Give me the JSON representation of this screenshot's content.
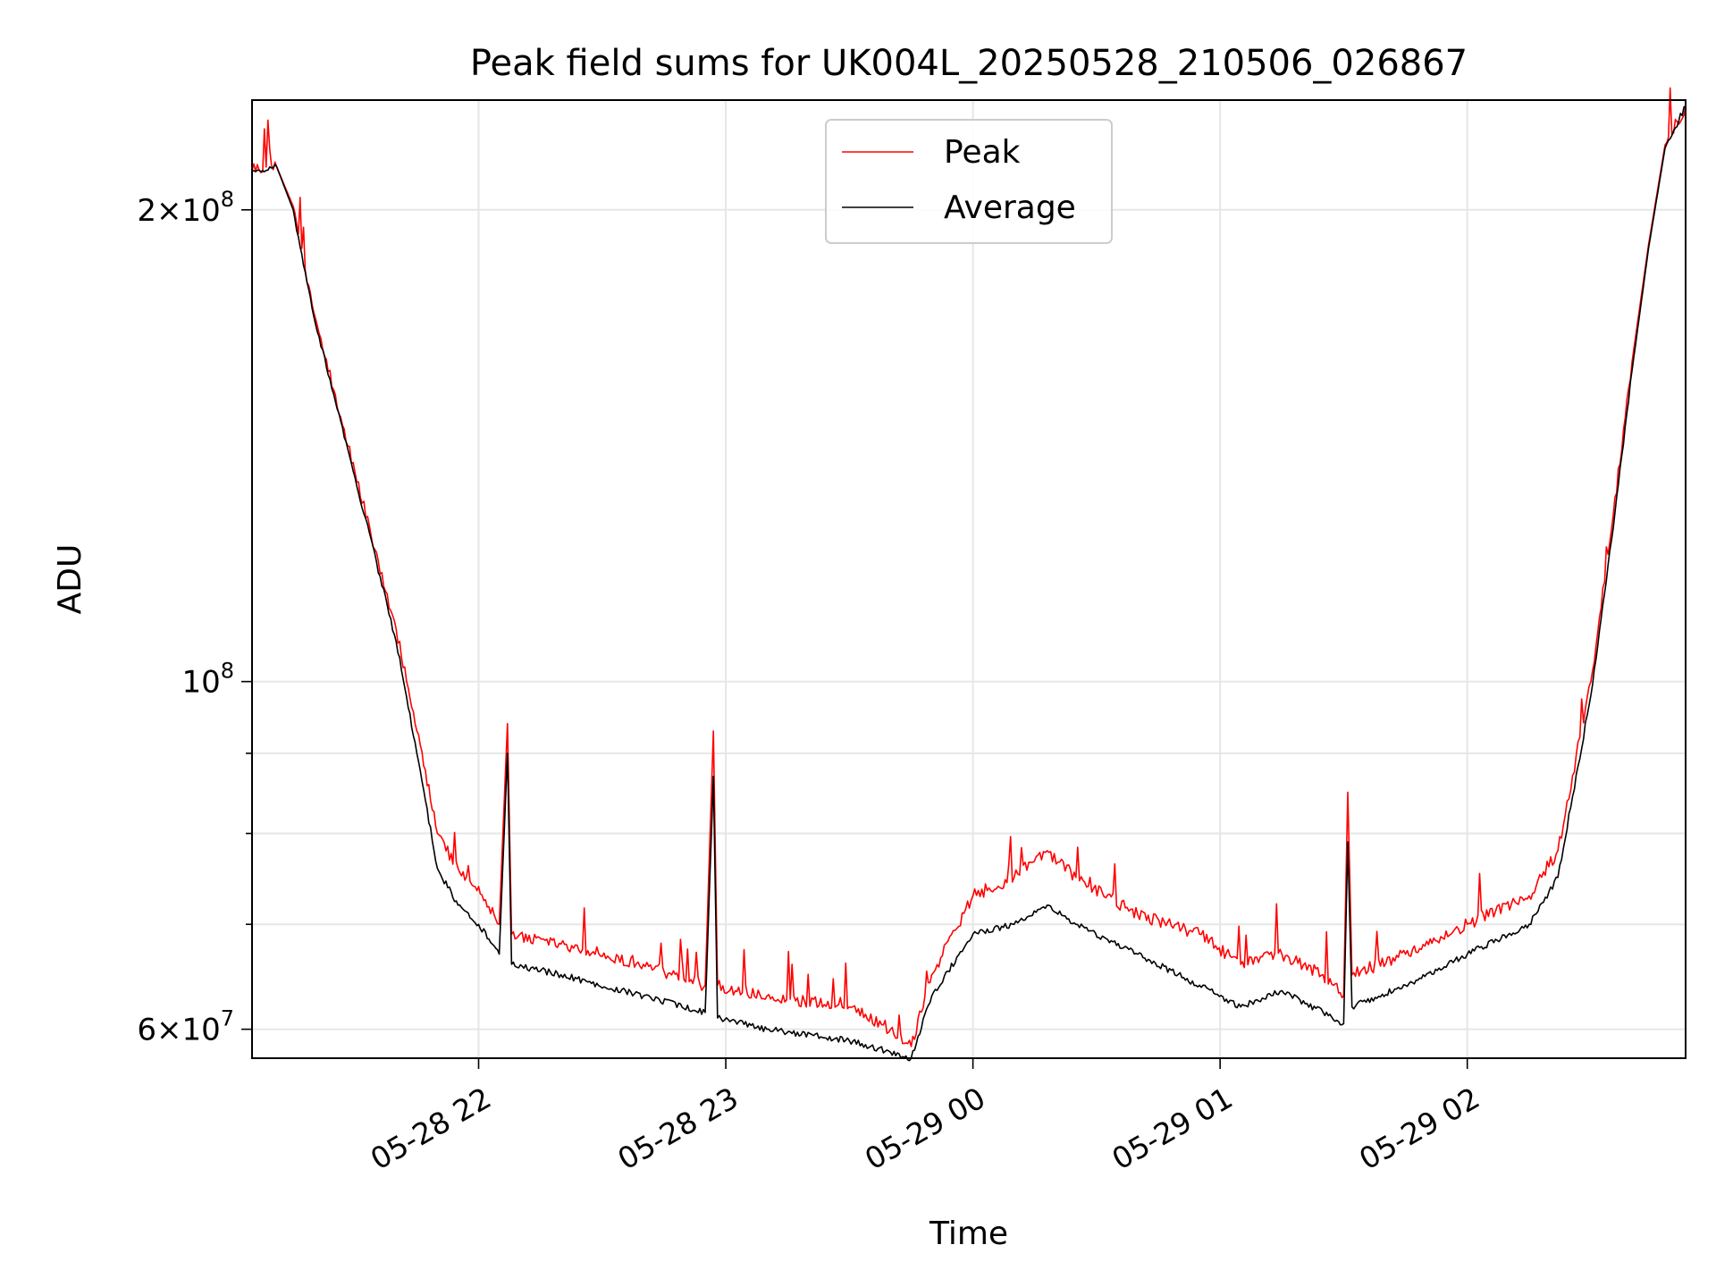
{
  "chart_data": {
    "type": "line",
    "title": "Peak field sums for UK004L_20250528_210506_026867",
    "xlabel": "Time",
    "ylabel": "ADU",
    "y_scale": "log",
    "grid": true,
    "legend_position": "top-center",
    "xlim": [
      "2025-05-28 21:05",
      "2025-05-29 02:53"
    ],
    "ylim": [
      57500000,
      235000000
    ],
    "x_tick_labels": [
      {
        "label": "05-28 22",
        "time": "2025-05-28 22:00"
      },
      {
        "label": "05-28 23",
        "time": "2025-05-28 23:00"
      },
      {
        "label": "05-29 00",
        "time": "2025-05-29 00:00"
      },
      {
        "label": "05-29 01",
        "time": "2025-05-29 01:00"
      },
      {
        "label": "05-29 02",
        "time": "2025-05-29 02:00"
      }
    ],
    "y_major_ticks": [
      {
        "value": 100000000,
        "mantissa": "",
        "base": "10",
        "exp": "8"
      },
      {
        "value": 200000000,
        "mantissa": "2×",
        "base": "10",
        "exp": "8"
      },
      {
        "value": 60000000,
        "mantissa": "6×",
        "base": "10",
        "exp": "7"
      }
    ],
    "y_minor_ticks": [
      70000000,
      80000000,
      90000000
    ],
    "series": [
      {
        "name": "Peak",
        "color": "#ff0000",
        "points": [
          [
            "2025-05-28 21:05",
            212000000
          ],
          [
            "2025-05-28 21:11",
            213000000
          ],
          [
            "2025-05-28 21:15",
            201000000
          ],
          [
            "2025-05-28 21:20",
            172000000
          ],
          [
            "2025-05-28 21:30",
            136000000
          ],
          [
            "2025-05-28 21:40",
            108000000
          ],
          [
            "2025-05-28 21:45",
            93000000
          ],
          [
            "2025-05-28 21:50",
            80000000
          ],
          [
            "2025-05-28 21:55",
            76000000
          ],
          [
            "2025-05-28 22:00",
            74000000
          ],
          [
            "2025-05-28 22:05",
            70000000
          ],
          [
            "2025-05-28 22:07",
            94000000
          ],
          [
            "2025-05-28 22:08",
            69000000
          ],
          [
            "2025-05-28 22:20",
            68000000
          ],
          [
            "2025-05-28 22:40",
            66000000
          ],
          [
            "2025-05-28 22:55",
            64000000
          ],
          [
            "2025-05-28 22:57",
            93000000
          ],
          [
            "2025-05-28 22:58",
            64000000
          ],
          [
            "2025-05-28 23:10",
            63000000
          ],
          [
            "2025-05-28 23:30",
            62000000
          ],
          [
            "2025-05-28 23:40",
            60000000
          ],
          [
            "2025-05-28 23:45",
            58500000
          ],
          [
            "2025-05-28 23:50",
            65000000
          ],
          [
            "2025-05-29 00:00",
            73000000
          ],
          [
            "2025-05-29 00:10",
            75000000
          ],
          [
            "2025-05-29 00:18",
            78000000
          ],
          [
            "2025-05-29 00:25",
            75000000
          ],
          [
            "2025-05-29 00:40",
            71000000
          ],
          [
            "2025-05-29 00:55",
            69000000
          ],
          [
            "2025-05-29 01:05",
            66000000
          ],
          [
            "2025-05-29 01:15",
            67000000
          ],
          [
            "2025-05-29 01:25",
            65000000
          ],
          [
            "2025-05-29 01:30",
            63000000
          ],
          [
            "2025-05-29 01:31",
            85000000
          ],
          [
            "2025-05-29 01:32",
            65000000
          ],
          [
            "2025-05-29 01:45",
            67000000
          ],
          [
            "2025-05-29 02:00",
            70000000
          ],
          [
            "2025-05-29 02:15",
            73000000
          ],
          [
            "2025-05-29 02:22",
            78000000
          ],
          [
            "2025-05-29 02:30",
            100000000
          ],
          [
            "2025-05-29 02:35",
            125000000
          ],
          [
            "2025-05-29 02:40",
            160000000
          ],
          [
            "2025-05-29 02:44",
            190000000
          ],
          [
            "2025-05-29 02:48",
            220000000
          ],
          [
            "2025-05-29 02:53",
            233000000
          ]
        ]
      },
      {
        "name": "Average",
        "color": "#000000",
        "points": [
          [
            "2025-05-28 21:05",
            212000000
          ],
          [
            "2025-05-28 21:11",
            213000000
          ],
          [
            "2025-05-28 21:15",
            200000000
          ],
          [
            "2025-05-28 21:20",
            171000000
          ],
          [
            "2025-05-28 21:30",
            135000000
          ],
          [
            "2025-05-28 21:40",
            106000000
          ],
          [
            "2025-05-28 21:45",
            90000000
          ],
          [
            "2025-05-28 21:50",
            76000000
          ],
          [
            "2025-05-28 21:55",
            72000000
          ],
          [
            "2025-05-28 22:00",
            70000000
          ],
          [
            "2025-05-28 22:05",
            67000000
          ],
          [
            "2025-05-28 22:07",
            90000000
          ],
          [
            "2025-05-28 22:08",
            66000000
          ],
          [
            "2025-05-28 22:20",
            65000000
          ],
          [
            "2025-05-28 22:40",
            63000000
          ],
          [
            "2025-05-28 22:55",
            61500000
          ],
          [
            "2025-05-28 22:57",
            87000000
          ],
          [
            "2025-05-28 22:58",
            61000000
          ],
          [
            "2025-05-28 23:10",
            60000000
          ],
          [
            "2025-05-28 23:30",
            59000000
          ],
          [
            "2025-05-28 23:40",
            58000000
          ],
          [
            "2025-05-28 23:45",
            57500000
          ],
          [
            "2025-05-28 23:50",
            63000000
          ],
          [
            "2025-05-29 00:00",
            69000000
          ],
          [
            "2025-05-29 00:10",
            70000000
          ],
          [
            "2025-05-29 00:18",
            72000000
          ],
          [
            "2025-05-29 00:25",
            70000000
          ],
          [
            "2025-05-29 00:40",
            67000000
          ],
          [
            "2025-05-29 00:55",
            64000000
          ],
          [
            "2025-05-29 01:05",
            62000000
          ],
          [
            "2025-05-29 01:15",
            63500000
          ],
          [
            "2025-05-29 01:25",
            61500000
          ],
          [
            "2025-05-29 01:30",
            60500000
          ],
          [
            "2025-05-29 01:31",
            79000000
          ],
          [
            "2025-05-29 01:32",
            62000000
          ],
          [
            "2025-05-29 01:45",
            64000000
          ],
          [
            "2025-05-29 02:00",
            67000000
          ],
          [
            "2025-05-29 02:15",
            70000000
          ],
          [
            "2025-05-29 02:22",
            75000000
          ],
          [
            "2025-05-29 02:30",
            98000000
          ],
          [
            "2025-05-29 02:35",
            123000000
          ],
          [
            "2025-05-29 02:40",
            158000000
          ],
          [
            "2025-05-29 02:44",
            189000000
          ],
          [
            "2025-05-29 02:48",
            219000000
          ],
          [
            "2025-05-29 02:53",
            233000000
          ]
        ]
      }
    ]
  }
}
